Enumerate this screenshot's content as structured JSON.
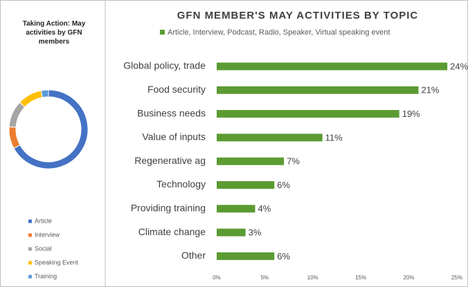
{
  "chart_data": [
    {
      "type": "donut",
      "title": "Taking Action: May activities by GFN members",
      "categories": [
        "Article",
        "Interview",
        "Social",
        "Speaking Event",
        "Training"
      ],
      "values": [
        67,
        9,
        11,
        10,
        3
      ],
      "colors": [
        "#4472c4",
        "#ed7d31",
        "#a5a5a5",
        "#ffc000",
        "#5b9bd5"
      ]
    },
    {
      "type": "hbar",
      "title": "GFN MEMBER'S MAY ACTIVITIES BY TOPIC",
      "categories": [
        "Global policy, trade",
        "Food security",
        "Business needs",
        "Value of inputs",
        "Regenerative ag",
        "Technology",
        "Providing training",
        "Climate change",
        "Other"
      ],
      "series": [
        {
          "name": "Article, Interview, Podcast, Radio, Speaker, Virtual speaking event",
          "color": "#5b9b32",
          "values": [
            24,
            21,
            19,
            11,
            7,
            6,
            4,
            3,
            6
          ],
          "value_labels": [
            "24%",
            "21%",
            "19%",
            "11%",
            "7%",
            "6%",
            "4%",
            "3%",
            "6%"
          ]
        }
      ],
      "xlim": [
        0,
        25
      ],
      "xticks": [
        {
          "value": 0,
          "label": "0%"
        },
        {
          "value": 5,
          "label": "5%"
        },
        {
          "value": 10,
          "label": "10%"
        },
        {
          "value": 15,
          "label": "15%"
        },
        {
          "value": 20,
          "label": "20%"
        },
        {
          "value": 25,
          "label": "25%"
        }
      ]
    }
  ]
}
